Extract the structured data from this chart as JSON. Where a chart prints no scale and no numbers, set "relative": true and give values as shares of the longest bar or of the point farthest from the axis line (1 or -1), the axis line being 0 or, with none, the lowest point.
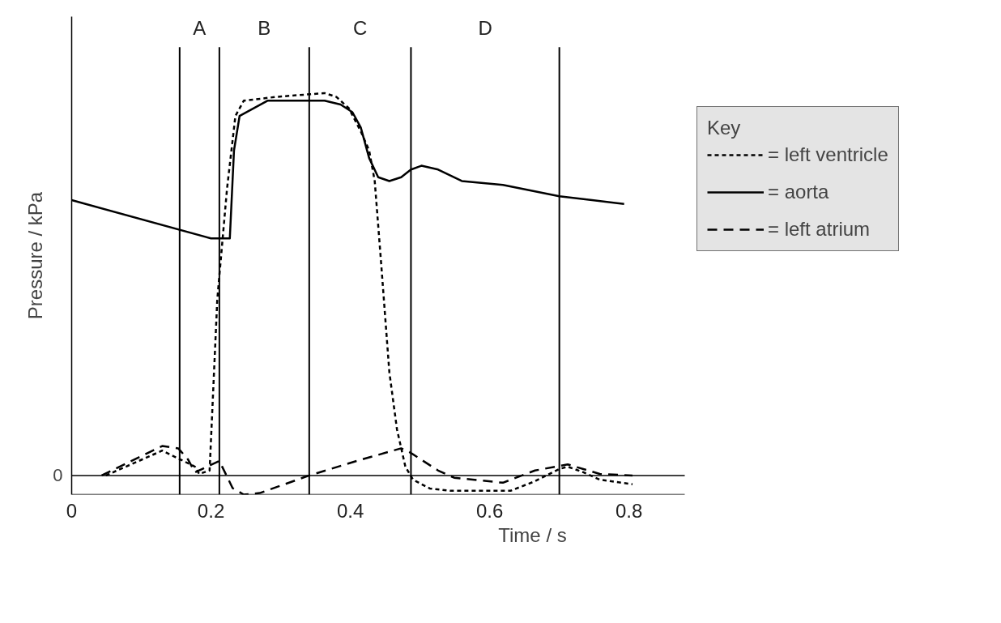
{
  "chart_data": {
    "type": "line",
    "xlabel": "Time / s",
    "ylabel": "Pressure / kPa",
    "legend_title": "Key",
    "legend": "right",
    "relative": true,
    "xlim": [
      0,
      0.88
    ],
    "xticks": [
      0,
      0.2,
      0.4,
      0.6,
      0.8
    ],
    "ref_lines": [
      {
        "axis": "y",
        "value": 0,
        "label": "0"
      },
      {
        "axis": "x",
        "value": 0.155
      },
      {
        "axis": "x",
        "value": 0.212
      },
      {
        "axis": "x",
        "value": 0.341
      },
      {
        "axis": "x",
        "value": 0.487
      },
      {
        "axis": "x",
        "value": 0.7
      }
    ],
    "annotations": [
      "A",
      "B",
      "C",
      "D"
    ],
    "series": [
      {
        "name": "= left ventricle",
        "color": "#000000",
        "line_style": "dotted",
        "x": [
          0.049,
          0.13,
          0.177,
          0.183,
          0.198,
          0.209,
          0.223,
          0.235,
          0.247,
          0.293,
          0.363,
          0.38,
          0.398,
          0.415,
          0.427,
          0.435,
          0.444,
          0.456,
          0.467,
          0.479,
          0.49,
          0.514,
          0.543,
          0.63,
          0.665,
          0.7,
          0.712,
          0.735,
          0.758,
          0.805
        ],
        "values": [
          0,
          0.065,
          0.023,
          0.004,
          0.013,
          0.46,
          0.75,
          0.94,
          0.98,
          0.99,
          1.0,
          0.99,
          0.96,
          0.9,
          0.85,
          0.77,
          0.56,
          0.27,
          0.12,
          0.023,
          -0.011,
          -0.034,
          -0.04,
          -0.04,
          -0.015,
          0.017,
          0.023,
          0.008,
          -0.011,
          -0.023
        ]
      },
      {
        "name": "= aorta",
        "color": "#000000",
        "line_style": "solid",
        "x": [
          0,
          0.2,
          0.227,
          0.233,
          0.241,
          0.281,
          0.363,
          0.386,
          0.403,
          0.415,
          0.427,
          0.44,
          0.456,
          0.473,
          0.487,
          0.502,
          0.526,
          0.56,
          0.619,
          0.7,
          0.747,
          0.793
        ],
        "values": [
          0.72,
          0.62,
          0.62,
          0.85,
          0.94,
          0.98,
          0.98,
          0.97,
          0.95,
          0.91,
          0.83,
          0.78,
          0.77,
          0.78,
          0.8,
          0.81,
          0.8,
          0.77,
          0.76,
          0.73,
          0.72,
          0.71
        ]
      },
      {
        "name": "= left atrium",
        "color": "#000000",
        "line_style": "dashed",
        "x": [
          0.043,
          0.13,
          0.153,
          0.167,
          0.177,
          0.212,
          0.231,
          0.247,
          0.27,
          0.341,
          0.409,
          0.473,
          0.485,
          0.526,
          0.549,
          0.619,
          0.665,
          0.712,
          0.758,
          0.805
        ],
        "values": [
          0,
          0.077,
          0.071,
          0.042,
          0.008,
          0.038,
          -0.033,
          -0.05,
          -0.046,
          0,
          0.038,
          0.071,
          0.061,
          0.013,
          -0.006,
          -0.019,
          0.013,
          0.029,
          0.004,
          0
        ]
      }
    ]
  }
}
